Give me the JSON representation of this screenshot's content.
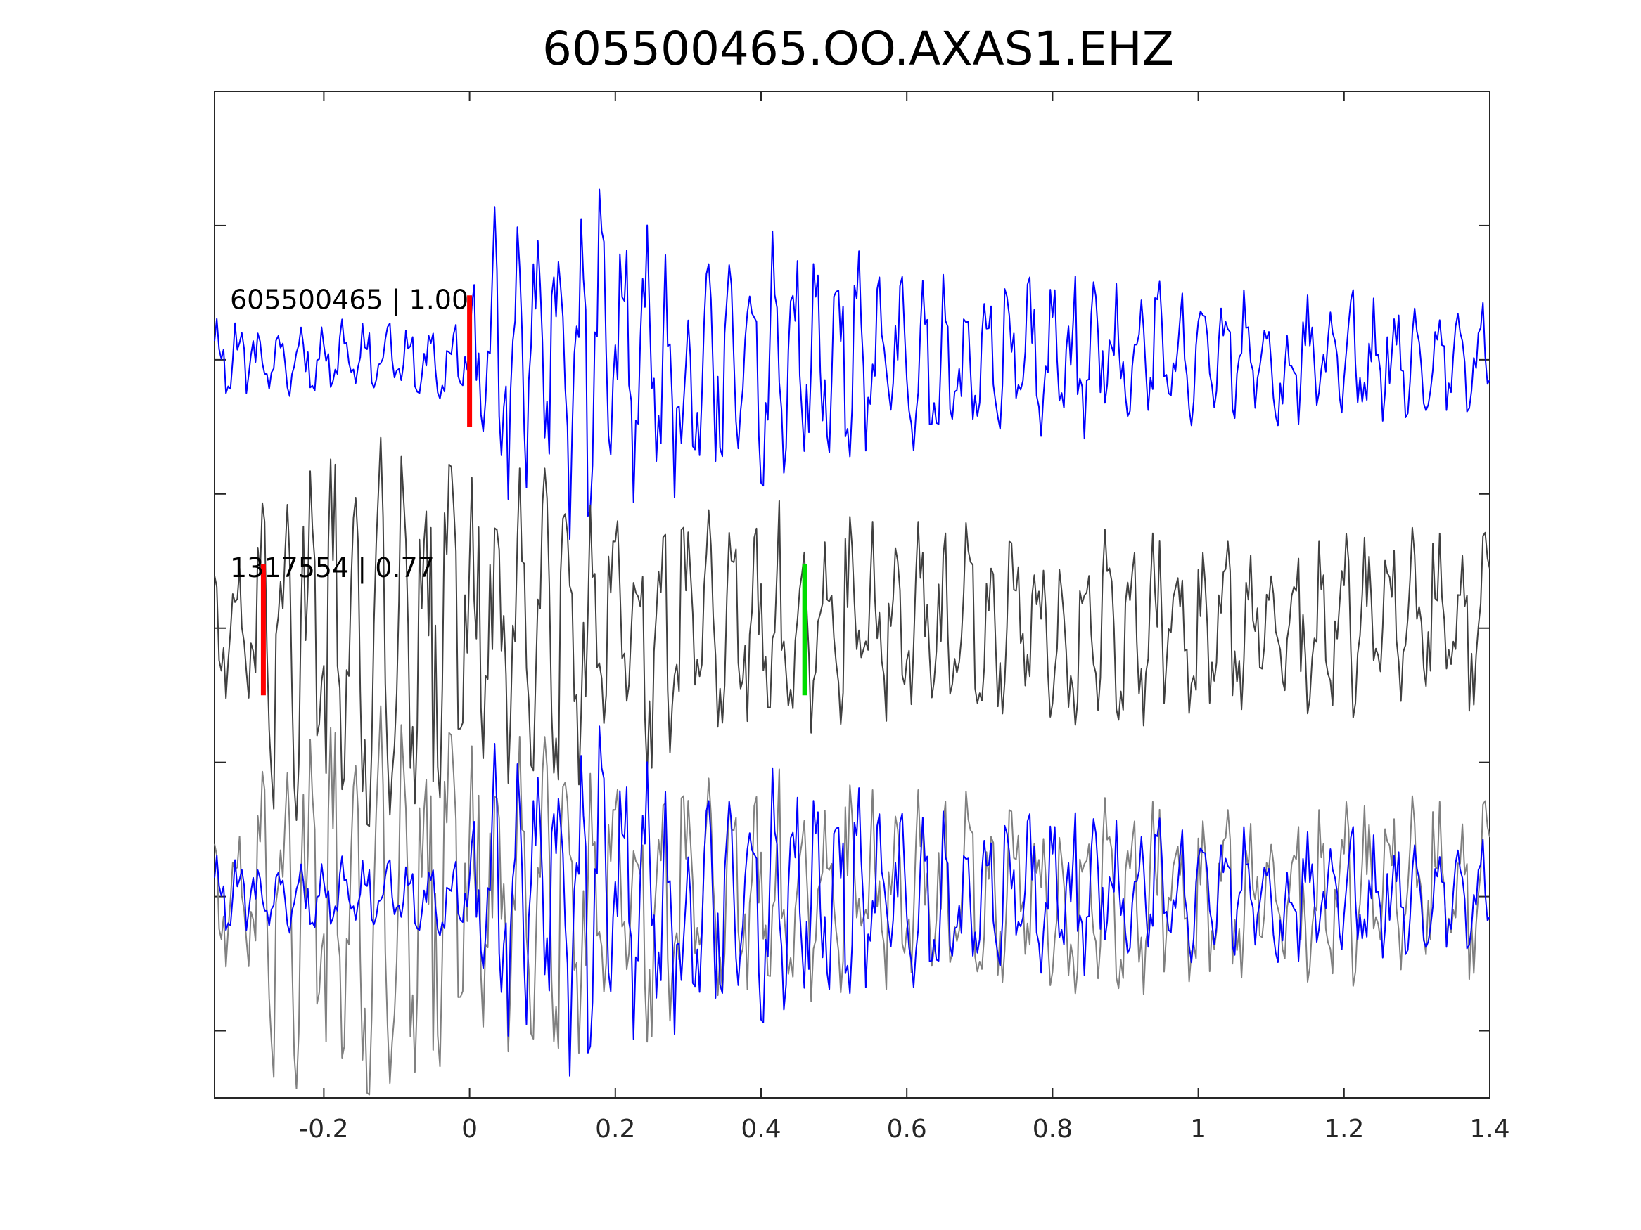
{
  "chart_data": {
    "type": "line",
    "title": "605500465.OO.AXAS1.EHZ",
    "xlabel": "",
    "ylabel": "",
    "xlim": [
      -0.35,
      1.4
    ],
    "ylim": [
      0,
      7.5
    ],
    "xticks": [
      -0.2,
      0,
      0.2,
      0.4,
      0.6,
      0.8,
      1,
      1.2,
      1.4
    ],
    "xtick_labels": [
      "-0.2",
      "0",
      "0.2",
      "0.4",
      "0.6",
      "0.8",
      "1",
      "1.2",
      "1.4"
    ],
    "yticks": [
      0.5,
      1.5,
      2.5,
      3.5,
      4.5,
      5.5,
      6.5
    ],
    "ytick_labels": [],
    "grid": false,
    "traces": [
      {
        "label": "605500465 | 1.00",
        "baseline": 5.5,
        "color": "#0000ff",
        "picks": [
          {
            "t": 0.0,
            "color": "#ff0000"
          }
        ]
      },
      {
        "label": "1317554 | 0.77",
        "baseline": 3.5,
        "color": "#404040",
        "picks": [
          {
            "t": -0.283,
            "color": "#ff0000"
          },
          {
            "t": 0.46,
            "color": "#00dd00"
          }
        ]
      }
    ],
    "overlay": {
      "baseline": 1.5,
      "colors": [
        "#808080",
        "#0000ff"
      ]
    }
  }
}
